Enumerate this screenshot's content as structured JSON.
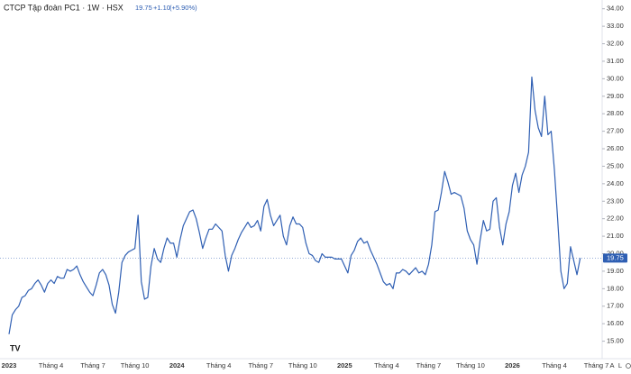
{
  "chart_data": {
    "type": "line",
    "title": "CTCP Tập đoàn PC1 · 1W · HSX",
    "quote": {
      "price": "19.75",
      "change": "+1.10",
      "change_pct": "(+5.90%)"
    },
    "last_value_label": "19.75",
    "axis_buttons": [
      "A",
      "L"
    ],
    "categories": [
      "2023",
      null,
      null,
      null,
      null,
      null,
      null,
      null,
      null,
      null,
      null,
      null,
      null,
      "Tháng 4",
      null,
      null,
      null,
      null,
      null,
      null,
      null,
      null,
      null,
      null,
      null,
      null,
      "Tháng 7",
      null,
      null,
      null,
      null,
      null,
      null,
      null,
      null,
      null,
      null,
      null,
      null,
      "Tháng 10",
      null,
      null,
      null,
      null,
      null,
      null,
      null,
      null,
      null,
      null,
      null,
      null,
      "2024",
      null,
      null,
      null,
      null,
      null,
      null,
      null,
      null,
      null,
      null,
      null,
      null,
      "Tháng 4",
      null,
      null,
      null,
      null,
      null,
      null,
      null,
      null,
      null,
      null,
      null,
      null,
      "Tháng 7",
      null,
      null,
      null,
      null,
      null,
      null,
      null,
      null,
      null,
      null,
      null,
      null,
      "Tháng 10",
      null,
      null,
      null,
      null,
      null,
      null,
      null,
      null,
      null,
      null,
      null,
      null,
      "2025",
      null,
      null,
      null,
      null,
      null,
      null,
      null,
      null,
      null,
      null,
      null,
      null,
      "Tháng 4",
      null,
      null,
      null,
      null,
      null,
      null,
      null,
      null,
      null,
      null,
      null,
      null,
      "Tháng 7",
      null,
      null,
      null,
      null,
      null,
      null,
      null,
      null,
      null,
      null,
      null,
      null,
      "Tháng 10",
      null,
      null,
      null,
      null,
      null,
      null,
      null,
      null,
      null,
      null,
      null,
      null,
      "2026",
      null,
      null,
      null,
      null,
      null,
      null,
      null,
      null,
      null,
      null,
      null,
      null,
      "Tháng 4",
      null,
      null,
      null,
      null,
      null,
      null,
      null,
      null,
      null,
      null,
      null,
      null,
      "Tháng 7"
    ],
    "series": [
      {
        "color": "#2f5fb3",
        "values": [
          15.4,
          16.5,
          16.8,
          17.0,
          17.5,
          17.6,
          17.9,
          18.0,
          18.3,
          18.5,
          18.2,
          17.8,
          18.3,
          18.5,
          18.3,
          18.7,
          18.6,
          18.6,
          19.1,
          19.0,
          19.1,
          19.3,
          18.8,
          18.4,
          18.1,
          17.8,
          17.6,
          18.2,
          18.9,
          19.1,
          18.8,
          18.2,
          17.1,
          16.6,
          17.8,
          19.5,
          19.9,
          20.1,
          20.2,
          20.3,
          22.2,
          18.4,
          17.4,
          17.5,
          19.3,
          20.3,
          19.7,
          19.5,
          20.3,
          20.9,
          20.6,
          20.6,
          19.8,
          20.8,
          21.6,
          22.0,
          22.4,
          22.5,
          22.0,
          21.2,
          20.3,
          20.9,
          21.4,
          21.4,
          21.7,
          21.5,
          21.3,
          19.9,
          19.0,
          19.9,
          20.3,
          20.8,
          21.2,
          21.5,
          21.8,
          21.5,
          21.6,
          21.9,
          21.3,
          22.7,
          23.1,
          22.2,
          21.6,
          21.9,
          22.2,
          21.0,
          20.5,
          21.6,
          22.1,
          21.7,
          21.7,
          21.5,
          20.6,
          20.0,
          19.9,
          19.6,
          19.5,
          20.0,
          19.8,
          19.8,
          19.8,
          19.7,
          19.7,
          19.7,
          19.3,
          18.9,
          19.9,
          20.2,
          20.7,
          20.9,
          20.6,
          20.7,
          20.2,
          19.8,
          19.4,
          18.9,
          18.4,
          18.2,
          18.3,
          18.0,
          18.9,
          18.9,
          19.1,
          19.0,
          18.8,
          19.0,
          19.2,
          18.9,
          19.0,
          18.8,
          19.4,
          20.5,
          22.4,
          22.5,
          23.5,
          24.7,
          24.1,
          23.4,
          23.5,
          23.4,
          23.3,
          22.6,
          21.3,
          20.8,
          20.5,
          19.4,
          20.8,
          21.9,
          21.3,
          21.4,
          23.0,
          23.2,
          21.5,
          20.5,
          21.7,
          22.4,
          23.9,
          24.6,
          23.5,
          24.5,
          25.0,
          25.8,
          30.1,
          28.2,
          27.2,
          26.7,
          29.0,
          26.8,
          27.0,
          24.8,
          22.0,
          19.0,
          18.0,
          18.3,
          20.4,
          19.6,
          18.8,
          19.75,
          null,
          null,
          null,
          null,
          null
        ]
      }
    ],
    "ylim": [
      14,
      34.5
    ],
    "yticks": [
      {
        "value": 15,
        "label": "15.00"
      },
      {
        "value": 16,
        "label": "16.00"
      },
      {
        "value": 17,
        "label": "17.00"
      },
      {
        "value": 18,
        "label": "18.00"
      },
      {
        "value": 19,
        "label": "19.00"
      },
      {
        "value": 20,
        "label": "20.00"
      },
      {
        "value": 21,
        "label": "21.00"
      },
      {
        "value": 22,
        "label": "22.00"
      },
      {
        "value": 23,
        "label": "23.00"
      },
      {
        "value": 24,
        "label": "24.00"
      },
      {
        "value": 25,
        "label": "25.00"
      },
      {
        "value": 26,
        "label": "26.00"
      },
      {
        "value": 27,
        "label": "27.00"
      },
      {
        "value": 28,
        "label": "28.00"
      },
      {
        "value": 29,
        "label": "29.00"
      },
      {
        "value": 30,
        "label": "30.00"
      },
      {
        "value": 31,
        "label": "31.00"
      },
      {
        "value": 32,
        "label": "32.00"
      },
      {
        "value": 33,
        "label": "33.00"
      },
      {
        "value": 34,
        "label": "34.00"
      }
    ],
    "grid": false
  }
}
